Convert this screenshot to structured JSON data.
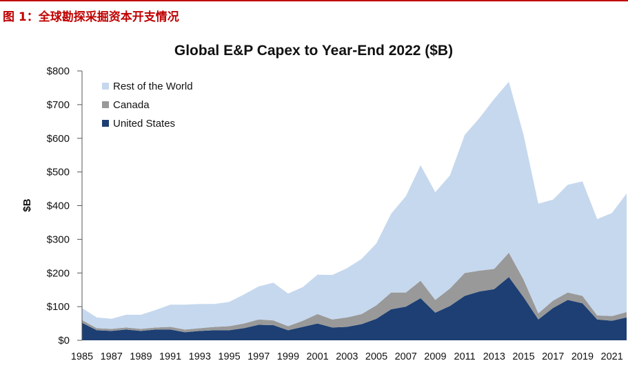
{
  "figure_caption": "图 1：全球勘探采掘资本开支情况",
  "colors": {
    "rest_of_world": "#c6d8ee",
    "canada": "#999999",
    "united_states": "#1d3f73",
    "caption_red": "#c00000"
  },
  "chart_data": {
    "type": "area",
    "stacked": true,
    "title": "Global E&P Capex to Year-End 2022 ($B)",
    "ylabel": "$B",
    "xlabel": "",
    "ylim": [
      0,
      800
    ],
    "yticks": [
      "$0",
      "$100",
      "$200",
      "$300",
      "$400",
      "$500",
      "$600",
      "$700",
      "$800"
    ],
    "xticks": [
      "1985",
      "1987",
      "1989",
      "1991",
      "1993",
      "1995",
      "1997",
      "1999",
      "2001",
      "2003",
      "2005",
      "2007",
      "2009",
      "2011",
      "2013",
      "2015",
      "2017",
      "2019",
      "2021"
    ],
    "grid": false,
    "legend_position": "top-left",
    "x": [
      1985,
      1986,
      1987,
      1988,
      1989,
      1990,
      1991,
      1992,
      1993,
      1994,
      1995,
      1996,
      1997,
      1998,
      1999,
      2000,
      2001,
      2002,
      2003,
      2004,
      2005,
      2006,
      2007,
      2008,
      2009,
      2010,
      2011,
      2012,
      2013,
      2014,
      2015,
      2016,
      2017,
      2018,
      2019,
      2020,
      2021,
      2022
    ],
    "series": [
      {
        "name": "United States",
        "values": [
          52,
          30,
          28,
          32,
          28,
          32,
          32,
          24,
          28,
          30,
          30,
          36,
          46,
          45,
          30,
          40,
          50,
          38,
          40,
          48,
          64,
          92,
          100,
          125,
          82,
          102,
          132,
          145,
          152,
          188,
          128,
          62,
          96,
          120,
          110,
          62,
          58,
          68
        ]
      },
      {
        "name": "Canada",
        "values": [
          8,
          6,
          6,
          6,
          6,
          6,
          8,
          8,
          8,
          10,
          12,
          14,
          16,
          14,
          12,
          18,
          28,
          24,
          28,
          30,
          40,
          50,
          42,
          52,
          38,
          52,
          68,
          62,
          60,
          72,
          52,
          18,
          22,
          22,
          22,
          12,
          14,
          16
        ]
      },
      {
        "name": "Rest of the World",
        "values": [
          36,
          32,
          30,
          38,
          42,
          52,
          66,
          74,
          72,
          68,
          72,
          86,
          98,
          112,
          97,
          100,
          117,
          132,
          146,
          164,
          184,
          234,
          286,
          343,
          320,
          336,
          410,
          453,
          505,
          508,
          430,
          326,
          300,
          320,
          340,
          286,
          306,
          352
        ]
      }
    ],
    "totals": [
      96,
      68,
      64,
      76,
      76,
      90,
      106,
      106,
      108,
      108,
      114,
      136,
      160,
      171,
      139,
      158,
      195,
      194,
      214,
      242,
      288,
      376,
      428,
      520,
      440,
      490,
      610,
      660,
      717,
      768,
      610,
      406,
      418,
      462,
      472,
      360,
      378,
      436
    ]
  }
}
